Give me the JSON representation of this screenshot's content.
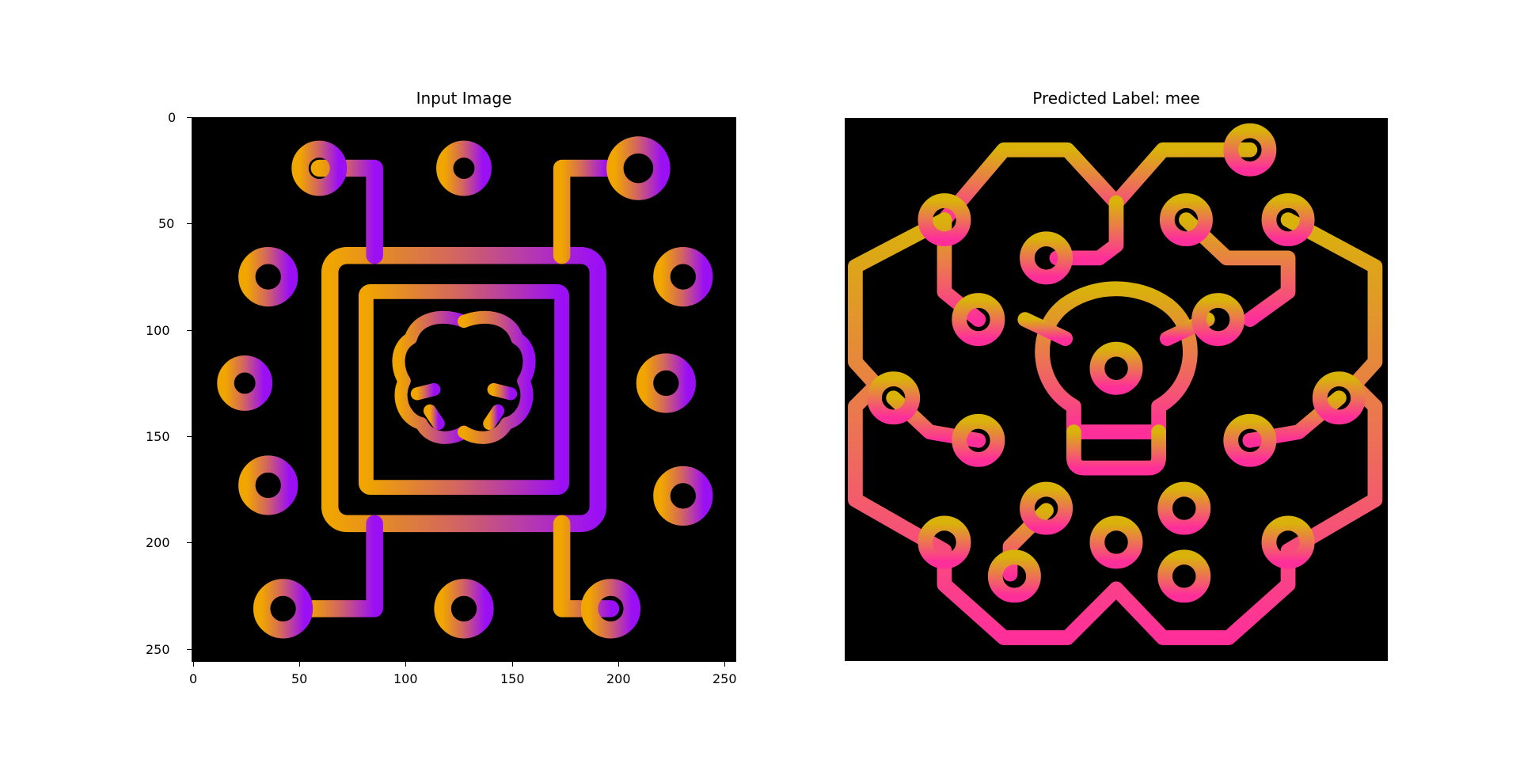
{
  "figure": {
    "panels": [
      {
        "title": "Input Image",
        "axes_visible": true,
        "x_ticks": [
          "0",
          "50",
          "100",
          "150",
          "200",
          "250"
        ],
        "y_ticks": [
          "0",
          "50",
          "100",
          "150",
          "200",
          "250"
        ],
        "image_description_icon": "ai-chip-brain-icon",
        "gradient_colors": [
          "#f0a500",
          "#9b0ff5"
        ]
      },
      {
        "title": "Predicted Label: mee",
        "axes_visible": false,
        "image_description_icon": "brain-circuit-lightbulb-icon",
        "gradient_colors": [
          "#d9b20a",
          "#ff2f9a"
        ]
      }
    ]
  }
}
